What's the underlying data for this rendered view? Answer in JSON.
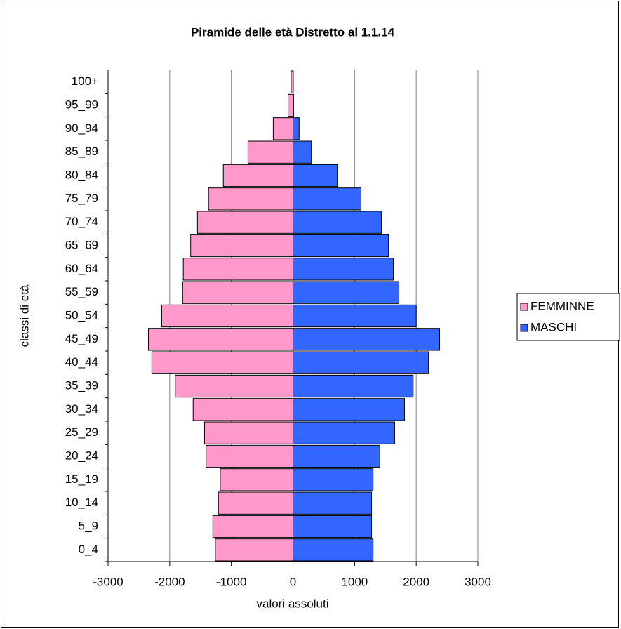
{
  "chart_data": {
    "type": "pyramid",
    "title": "Piramide delle età Distretto al 1.1.14",
    "x_label": "valori assoluti",
    "y_label": "classi di età",
    "categories": [
      "0_4",
      "5_9",
      "10_14",
      "15_19",
      "20_24",
      "25_29",
      "30_34",
      "35_39",
      "40_44",
      "45_49",
      "50_54",
      "55_59",
      "60_64",
      "65_69",
      "70_74",
      "75_79",
      "80_84",
      "85_89",
      "90_94",
      "95_99",
      "100+"
    ],
    "series": [
      {
        "name": "FEMMINNE",
        "color": "#ff99cc",
        "values": [
          -1260,
          -1300,
          -1210,
          -1180,
          -1410,
          -1435,
          -1620,
          -1910,
          -2290,
          -2345,
          -2130,
          -1790,
          -1780,
          -1660,
          -1550,
          -1370,
          -1130,
          -730,
          -320,
          -80,
          -30
        ]
      },
      {
        "name": "MASCHI",
        "color": "#3366ff",
        "values": [
          1300,
          1275,
          1275,
          1300,
          1410,
          1650,
          1810,
          1950,
          2200,
          2380,
          2000,
          1720,
          1630,
          1550,
          1435,
          1105,
          720,
          300,
          100,
          10,
          5
        ]
      }
    ],
    "xlim": [
      -3000,
      3000
    ],
    "xticks": [
      -3000,
      -2000,
      -1000,
      0,
      1000,
      2000,
      3000
    ],
    "grid": true,
    "legend": "right"
  }
}
